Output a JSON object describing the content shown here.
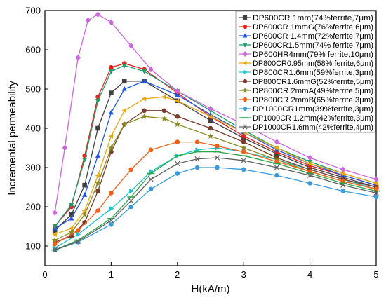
{
  "chart_data": {
    "type": "line",
    "xlabel": "H(kA/m)",
    "ylabel": "Incremental permeability",
    "xlim": [
      0,
      5
    ],
    "ylim": [
      50,
      700
    ],
    "x_ticks": [
      0,
      1,
      2,
      3,
      4,
      5
    ],
    "y_ticks": [
      100,
      200,
      300,
      400,
      500,
      600,
      700
    ],
    "grid": false,
    "legend_position": "top-right",
    "series": [
      {
        "name": "DP600CR 1mm(74%ferrite,7μm)",
        "color": "#404040",
        "marker": "square",
        "x": [
          0.15,
          0.4,
          0.6,
          0.8,
          1.0,
          1.2,
          1.5,
          2.0,
          2.5,
          3.0,
          3.5,
          4.0,
          4.5,
          5.0
        ],
        "y": [
          140,
          180,
          255,
          400,
          490,
          520,
          520,
          470,
          420,
          375,
          335,
          300,
          275,
          250
        ]
      },
      {
        "name": "DP600CR 1mmG(76%ferrite,6μm)",
        "color": "#e8201a",
        "marker": "circle",
        "x": [
          0.15,
          0.4,
          0.6,
          0.8,
          1.0,
          1.2,
          1.5,
          2.0,
          2.5,
          3.0,
          3.5,
          4.0,
          4.5,
          5.0
        ],
        "y": [
          150,
          200,
          330,
          480,
          555,
          565,
          550,
          490,
          430,
          380,
          340,
          305,
          280,
          255
        ]
      },
      {
        "name": "DP600CR 1.4mm(72%ferrite,7μm)",
        "color": "#1f56e0",
        "marker": "triangle-up",
        "x": [
          0.15,
          0.4,
          0.6,
          0.8,
          1.0,
          1.2,
          1.5,
          2.0,
          2.5,
          3.0,
          3.5,
          4.0,
          4.5,
          5.0
        ],
        "y": [
          145,
          170,
          230,
          330,
          440,
          500,
          520,
          485,
          435,
          390,
          345,
          310,
          280,
          255
        ]
      },
      {
        "name": "DP600CR1.5mm(74% ferrite,7μm)",
        "color": "#1a9e6a",
        "marker": "triangle-down",
        "x": [
          0.15,
          0.4,
          0.6,
          0.8,
          1.0,
          1.2,
          1.5,
          2.0,
          2.5,
          3.0,
          3.5,
          4.0,
          4.5,
          5.0
        ],
        "y": [
          150,
          205,
          320,
          470,
          545,
          560,
          545,
          495,
          445,
          395,
          350,
          315,
          285,
          260
        ]
      },
      {
        "name": "DP600HR4mm(79% ferrite,10μm)",
        "color": "#cc66dd",
        "marker": "diamond",
        "x": [
          0.15,
          0.3,
          0.5,
          0.65,
          0.8,
          1.0,
          1.3,
          1.6,
          2.0,
          2.5,
          3.0,
          3.5,
          4.0,
          4.5,
          5.0
        ],
        "y": [
          185,
          350,
          580,
          675,
          690,
          670,
          610,
          550,
          495,
          450,
          410,
          365,
          325,
          295,
          270
        ]
      },
      {
        "name": "DP800CR0.95mm(58% ferrite,6μm)",
        "color": "#e8a812",
        "marker": "triangle-left",
        "x": [
          0.15,
          0.4,
          0.6,
          0.8,
          1.0,
          1.2,
          1.5,
          1.8,
          2.0,
          2.5,
          3.0,
          3.5,
          4.0,
          4.5,
          5.0
        ],
        "y": [
          130,
          145,
          190,
          280,
          380,
          445,
          475,
          480,
          470,
          430,
          390,
          350,
          310,
          285,
          260
        ]
      },
      {
        "name": "DP800CR1.6mm(59%ferrite,3μm)",
        "color": "#1fc0d0",
        "marker": "triangle-right",
        "x": [
          0.15,
          0.5,
          1.0,
          1.3,
          1.6,
          2.0,
          2.3,
          2.6,
          3.0,
          3.5,
          4.0,
          4.5,
          5.0
        ],
        "y": [
          95,
          130,
          195,
          240,
          290,
          330,
          345,
          350,
          340,
          320,
          295,
          270,
          245
        ]
      },
      {
        "name": "DP800CR1.6mmG(52%ferrite,5μm)",
        "color": "#7a3a2a",
        "marker": "circle",
        "x": [
          0.15,
          0.4,
          0.6,
          0.8,
          1.0,
          1.2,
          1.5,
          1.8,
          2.0,
          2.5,
          3.0,
          3.5,
          4.0,
          4.5,
          5.0
        ],
        "y": [
          110,
          125,
          160,
          240,
          340,
          410,
          445,
          445,
          430,
          400,
          365,
          325,
          295,
          270,
          250
        ]
      },
      {
        "name": "DP800CR 2mmA(49%ferrite,5μm)",
        "color": "#8a8a20",
        "marker": "star",
        "x": [
          0.15,
          0.4,
          0.6,
          0.8,
          1.0,
          1.2,
          1.5,
          1.8,
          2.0,
          2.5,
          3.0,
          3.5,
          4.0,
          4.5,
          5.0
        ],
        "y": [
          115,
          135,
          180,
          260,
          350,
          410,
          430,
          425,
          410,
          380,
          350,
          320,
          290,
          265,
          245
        ]
      },
      {
        "name": "DP800CR 2mmB(65%ferrite,3μm)",
        "color": "#f06018",
        "marker": "circle",
        "x": [
          0.15,
          0.5,
          0.8,
          1.0,
          1.3,
          1.6,
          2.0,
          2.3,
          2.6,
          3.0,
          3.5,
          4.0,
          4.5,
          5.0
        ],
        "y": [
          105,
          140,
          190,
          235,
          295,
          345,
          365,
          365,
          355,
          340,
          315,
          290,
          265,
          245
        ]
      },
      {
        "name": "DP1000CR1mm(39%ferrite,3μm)",
        "color": "#3a9ad8",
        "marker": "circle",
        "x": [
          0.15,
          0.5,
          1.0,
          1.3,
          1.6,
          2.0,
          2.3,
          2.6,
          3.0,
          3.5,
          4.0,
          4.5,
          5.0
        ],
        "y": [
          90,
          110,
          155,
          200,
          245,
          285,
          300,
          300,
          295,
          280,
          260,
          240,
          225
        ]
      },
      {
        "name": "DP1000CR 1.2mm(42%ferrite,3μm)",
        "color": "#2aa84a",
        "marker": "line",
        "x": [
          0.15,
          0.5,
          1.0,
          1.3,
          1.6,
          2.0,
          2.3,
          2.6,
          3.0,
          3.5,
          4.0,
          4.5,
          5.0
        ],
        "y": [
          90,
          115,
          170,
          225,
          285,
          330,
          340,
          340,
          330,
          310,
          285,
          260,
          240
        ]
      },
      {
        "name": "DP1000CR1.6mm(42%ferrite,4μm)",
        "color": "#606060",
        "marker": "x",
        "x": [
          0.15,
          0.5,
          1.0,
          1.3,
          1.6,
          2.0,
          2.3,
          2.6,
          3.0,
          3.5,
          4.0,
          4.5,
          5.0
        ],
        "y": [
          90,
          112,
          165,
          215,
          270,
          310,
          322,
          325,
          318,
          300,
          280,
          255,
          235
        ]
      }
    ]
  }
}
